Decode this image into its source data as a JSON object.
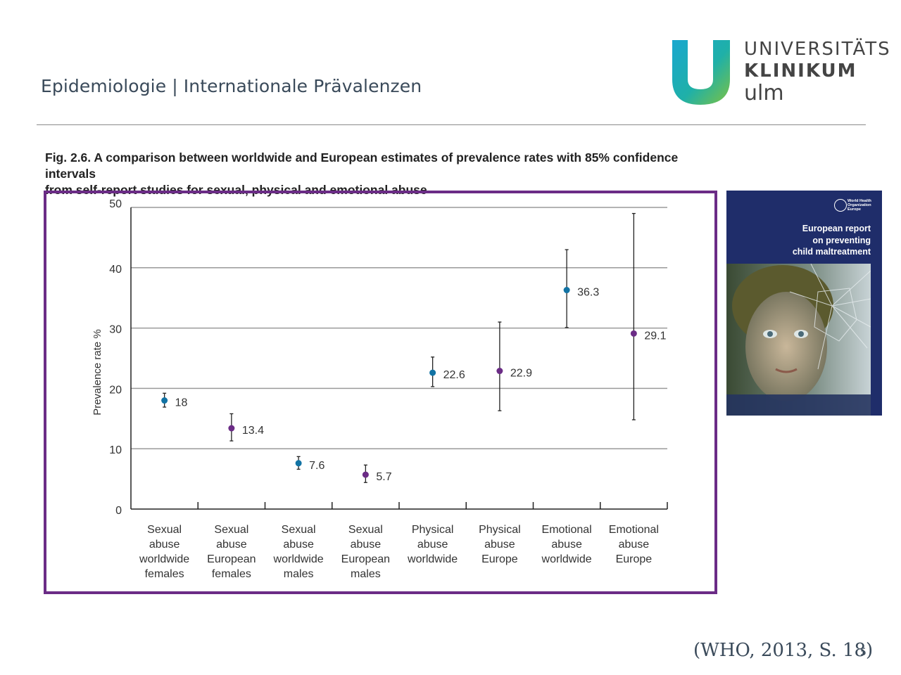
{
  "slide": {
    "title": "Epidemiologie | Internationale Prävalenzen",
    "citation": "(WHO, 2013, S. 18)",
    "page_number": "5"
  },
  "logo": {
    "line1": "UNIVERSITÄTS",
    "line2": "KLINIKUM",
    "line3": "ulm"
  },
  "figure": {
    "caption_line1": "Fig. 2.6. A comparison between worldwide and European estimates of prevalence rates with 85% confidence intervals",
    "caption_line2": "from self-report studies for sexual, physical and emotional abuse"
  },
  "report_cover": {
    "org_line1": "World Health",
    "org_line2": "Organization",
    "org_line3": "Europe",
    "title_line1": "European report",
    "title_line2": "on preventing",
    "title_line3": "child maltreatment"
  },
  "colors": {
    "worldwide": "#1273a4",
    "europe": "#6b2c86",
    "frame": "#6b2c86",
    "cover_bg": "#1f2d6a"
  },
  "chart_data": {
    "type": "scatter",
    "title": "",
    "xlabel": "",
    "ylabel": "Prevalence rate %",
    "ylim": [
      0,
      50
    ],
    "yticks": [
      0,
      10,
      20,
      30,
      40,
      50
    ],
    "grid": true,
    "categories": [
      [
        "Sexual",
        "abuse",
        "worldwide",
        "females"
      ],
      [
        "Sexual",
        "abuse",
        "European",
        "females"
      ],
      [
        "Sexual",
        "abuse",
        "worldwide",
        "males"
      ],
      [
        "Sexual",
        "abuse",
        "European",
        "males"
      ],
      [
        "Physical",
        "abuse",
        "worldwide"
      ],
      [
        "Physical",
        "abuse",
        "Europe"
      ],
      [
        "Emotional",
        "abuse",
        "worldwide"
      ],
      [
        "Emotional",
        "abuse",
        "Europe"
      ]
    ],
    "points": [
      {
        "value": 18,
        "label": "18",
        "low": 16.9,
        "high": 19.2,
        "group": "worldwide"
      },
      {
        "value": 13.4,
        "label": "13.4",
        "low": 11.3,
        "high": 15.8,
        "group": "europe"
      },
      {
        "value": 7.6,
        "label": "7.6",
        "low": 6.6,
        "high": 8.7,
        "group": "worldwide"
      },
      {
        "value": 5.7,
        "label": "5.7",
        "low": 4.4,
        "high": 7.3,
        "group": "europe"
      },
      {
        "value": 22.6,
        "label": "22.6",
        "low": 20.3,
        "high": 25.2,
        "group": "worldwide"
      },
      {
        "value": 22.9,
        "label": "22.9",
        "low": 16.3,
        "high": 31.0,
        "group": "europe"
      },
      {
        "value": 36.3,
        "label": "36.3",
        "low": 30.1,
        "high": 43.0,
        "group": "worldwide"
      },
      {
        "value": 29.1,
        "label": "29.1",
        "low": 14.8,
        "high": 49.0,
        "group": "europe"
      }
    ]
  }
}
